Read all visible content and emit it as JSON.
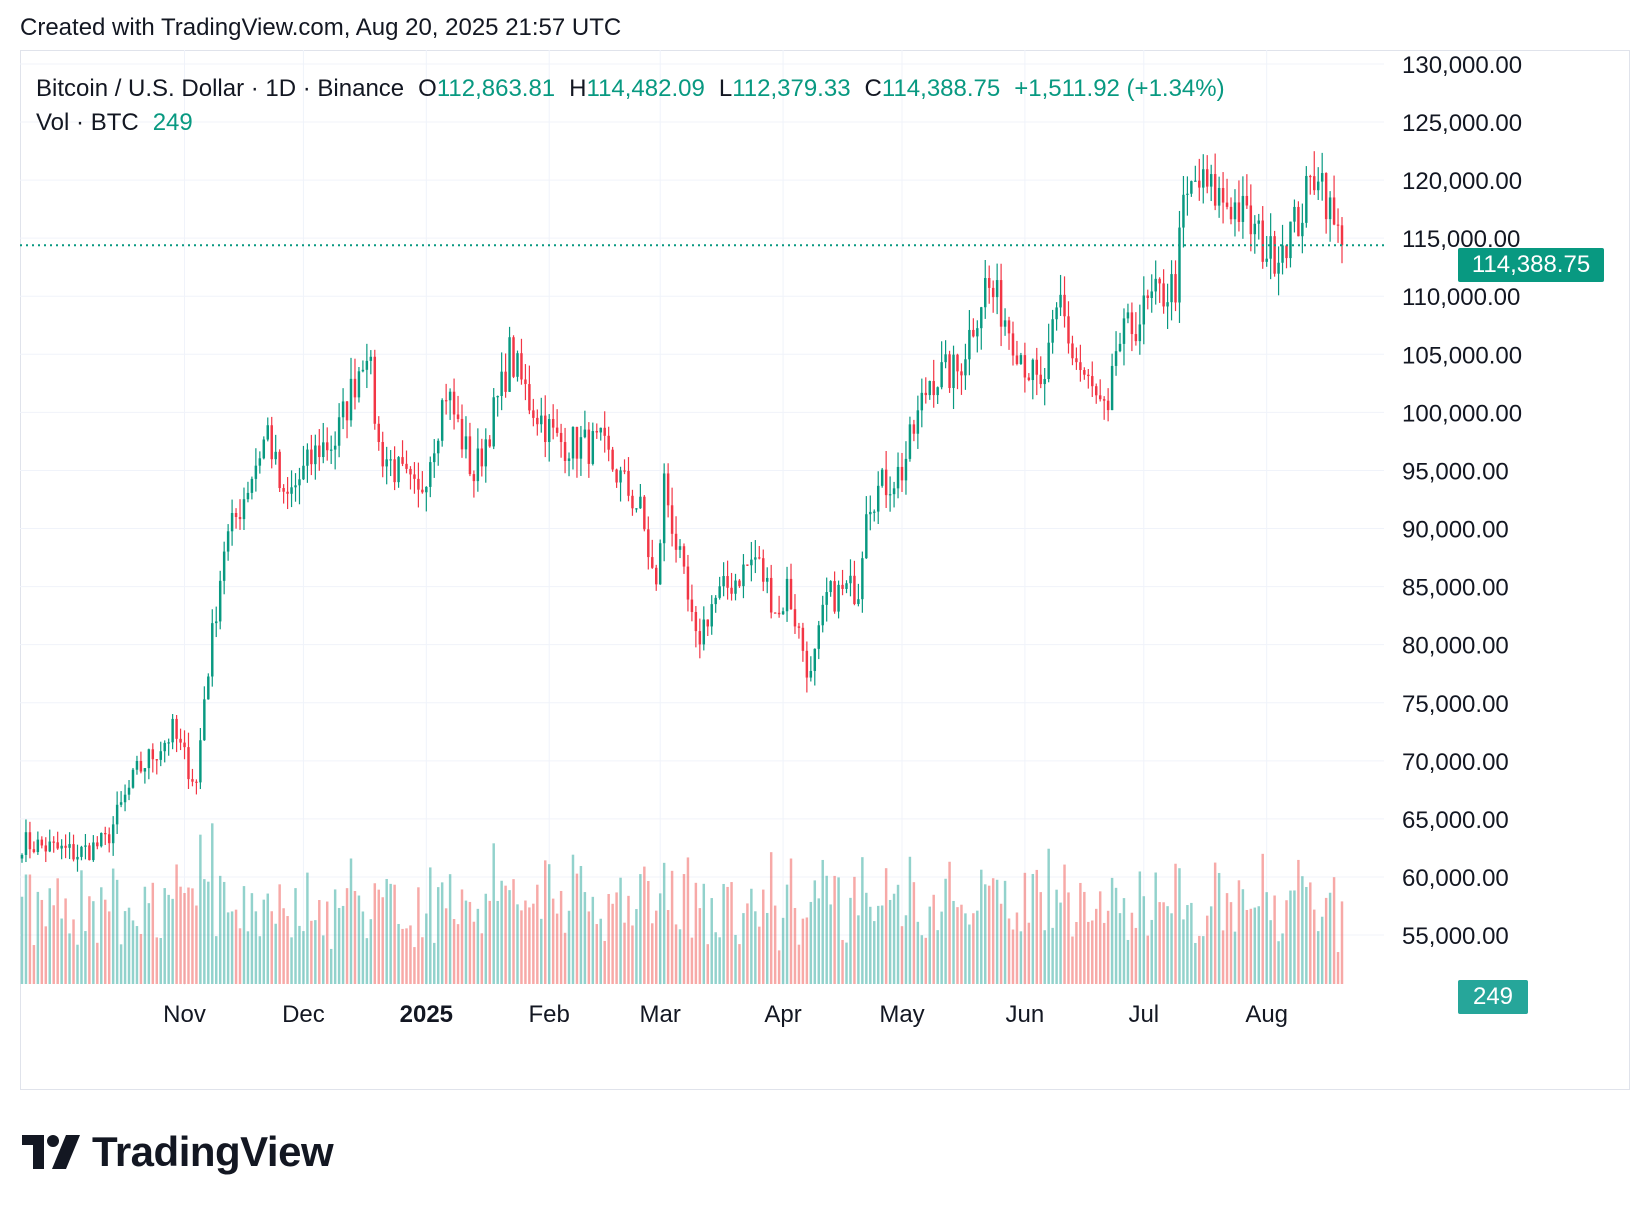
{
  "header": {
    "created_text": "Created with TradingView.com, Aug 20, 2025 21:57 UTC"
  },
  "legend": {
    "symbol": "Bitcoin / U.S. Dollar · 1D · Binance",
    "o_label": "O",
    "o_value": "112,863.81",
    "h_label": "H",
    "h_value": "114,482.09",
    "l_label": "L",
    "l_value": "112,379.33",
    "c_label": "C",
    "c_value": "114,388.75",
    "change": "+1,511.92 (+1.34%)",
    "vol_label": "Vol · BTC",
    "vol_value": "249"
  },
  "price_tag": "114,388.75",
  "vol_tag": "249",
  "logo": {
    "text": "TradingView",
    "icon": "tradingview-logo-icon"
  },
  "colors": {
    "up": "#089981",
    "down": "#f23645",
    "grid": "#f0f3fa",
    "text": "#131722"
  },
  "chart_data": {
    "type": "candlestick",
    "y_axis": {
      "ticks": [
        55000,
        60000,
        65000,
        70000,
        75000,
        80000,
        85000,
        90000,
        95000,
        100000,
        105000,
        110000,
        115000,
        120000,
        125000,
        130000
      ],
      "tick_labels": [
        "55,000.00",
        "60,000.00",
        "65,000.00",
        "70,000.00",
        "75,000.00",
        "80,000.00",
        "85,000.00",
        "90,000.00",
        "95,000.00",
        "100,000.00",
        "105,000.00",
        "110,000.00",
        "115,000.00",
        "120,000.00",
        "125,000.00",
        "130,000.00"
      ],
      "ylim": [
        50700,
        131200
      ]
    },
    "x_axis": {
      "start_date": "2024-09-21",
      "end_date": "2025-08-20",
      "labels": [
        {
          "date": "2024-11-01",
          "text": "Nov",
          "bold": false
        },
        {
          "date": "2024-12-01",
          "text": "Dec",
          "bold": false
        },
        {
          "date": "2025-01-01",
          "text": "2025",
          "bold": true
        },
        {
          "date": "2025-02-01",
          "text": "Feb",
          "bold": false
        },
        {
          "date": "2025-03-01",
          "text": "Mar",
          "bold": false
        },
        {
          "date": "2025-04-01",
          "text": "Apr",
          "bold": false
        },
        {
          "date": "2025-05-01",
          "text": "May",
          "bold": false
        },
        {
          "date": "2025-06-01",
          "text": "Jun",
          "bold": false
        },
        {
          "date": "2025-07-01",
          "text": "Jul",
          "bold": false
        },
        {
          "date": "2025-08-01",
          "text": "Aug",
          "bold": false
        }
      ]
    },
    "last_close": 114388.75,
    "grid": true,
    "price_anchors": [
      [
        "2024-09-21",
        63000
      ],
      [
        "2024-10-05",
        62000
      ],
      [
        "2024-10-12",
        63000
      ],
      [
        "2024-10-20",
        69000
      ],
      [
        "2024-10-29",
        72500
      ],
      [
        "2024-11-04",
        68000
      ],
      [
        "2024-11-06",
        75500
      ],
      [
        "2024-11-11",
        88500
      ],
      [
        "2024-11-13",
        90000
      ],
      [
        "2024-11-22",
        98500
      ],
      [
        "2024-11-26",
        92000
      ],
      [
        "2024-12-05",
        97000
      ],
      [
        "2024-12-09",
        97500
      ],
      [
        "2024-12-17",
        106000
      ],
      [
        "2024-12-20",
        97000
      ],
      [
        "2024-12-30",
        92500
      ],
      [
        "2025-01-06",
        102000
      ],
      [
        "2025-01-13",
        94500
      ],
      [
        "2025-01-20",
        102000
      ],
      [
        "2025-01-22",
        105000
      ],
      [
        "2025-01-27",
        101000
      ],
      [
        "2025-02-03",
        97500
      ],
      [
        "2025-02-14",
        97000
      ],
      [
        "2025-02-24",
        91500
      ],
      [
        "2025-02-28",
        84500
      ],
      [
        "2025-03-02",
        94000
      ],
      [
        "2025-03-10",
        80000
      ],
      [
        "2025-03-14",
        83500
      ],
      [
        "2025-03-25",
        87500
      ],
      [
        "2025-03-31",
        82500
      ],
      [
        "2025-04-02",
        85000
      ],
      [
        "2025-04-08",
        77000
      ],
      [
        "2025-04-12",
        84000
      ],
      [
        "2025-04-20",
        85000
      ],
      [
        "2025-04-22",
        92500
      ],
      [
        "2025-05-01",
        95000
      ],
      [
        "2025-05-08",
        103000
      ],
      [
        "2025-05-15",
        103500
      ],
      [
        "2025-05-22",
        111000
      ],
      [
        "2025-05-26",
        109000
      ],
      [
        "2025-06-05",
        101500
      ],
      [
        "2025-06-10",
        109500
      ],
      [
        "2025-06-13",
        105000
      ],
      [
        "2025-06-22",
        99000
      ],
      [
        "2025-06-24",
        105500
      ],
      [
        "2025-07-03",
        109500
      ],
      [
        "2025-07-09",
        111000
      ],
      [
        "2025-07-11",
        117500
      ],
      [
        "2025-07-14",
        119800
      ],
      [
        "2025-07-25",
        117500
      ],
      [
        "2025-08-02",
        113500
      ],
      [
        "2025-08-09",
        116500
      ],
      [
        "2025-08-14",
        121500
      ],
      [
        "2025-08-18",
        115800
      ],
      [
        "2025-08-20",
        114388.75
      ]
    ],
    "volume_ylim": [
      0,
      60000
    ]
  }
}
